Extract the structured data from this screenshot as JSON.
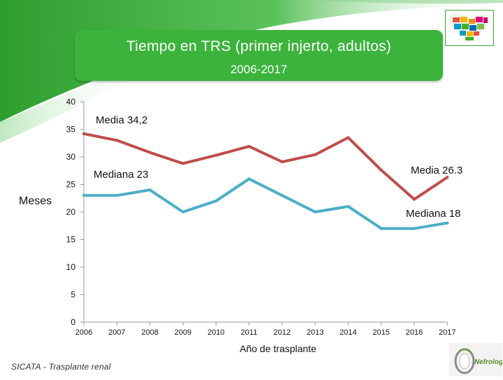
{
  "title": "Tiempo en TRS (primer injerto, adultos)",
  "subtitle": "2006-2017",
  "source_note": "SICATA - Trasplante renal",
  "seal_text": "Nefrologia",
  "colors": {
    "green": "#3cb33c",
    "media_line": "#bf4d4b",
    "mediana_line": "#4baec8",
    "axis": "#999999"
  },
  "chart_data": {
    "type": "line",
    "categories": [
      "2006",
      "2007",
      "2008",
      "2009",
      "2010",
      "2011",
      "2012",
      "2013",
      "2014",
      "2015",
      "2016",
      "2017"
    ],
    "ylim": [
      0,
      40
    ],
    "yticks": [
      0,
      5,
      10,
      15,
      20,
      25,
      30,
      35,
      40
    ],
    "xlabel": "Año de trasplante",
    "ylabel": "Meses",
    "series": [
      {
        "name": "Media",
        "values": [
          34.2,
          33.0,
          30.8,
          28.8,
          30.3,
          31.9,
          29.1,
          30.4,
          33.5,
          27.6,
          22.3,
          26.3
        ]
      },
      {
        "name": "Mediana",
        "values": [
          23,
          23,
          24,
          20,
          22,
          26,
          23,
          20,
          21,
          17,
          17,
          18
        ]
      }
    ],
    "annotations": {
      "media_start": "Media  34,2",
      "media_end": "Media  26.3",
      "mediana_start": "Mediana 23",
      "mediana_end": "Mediana 18"
    }
  }
}
